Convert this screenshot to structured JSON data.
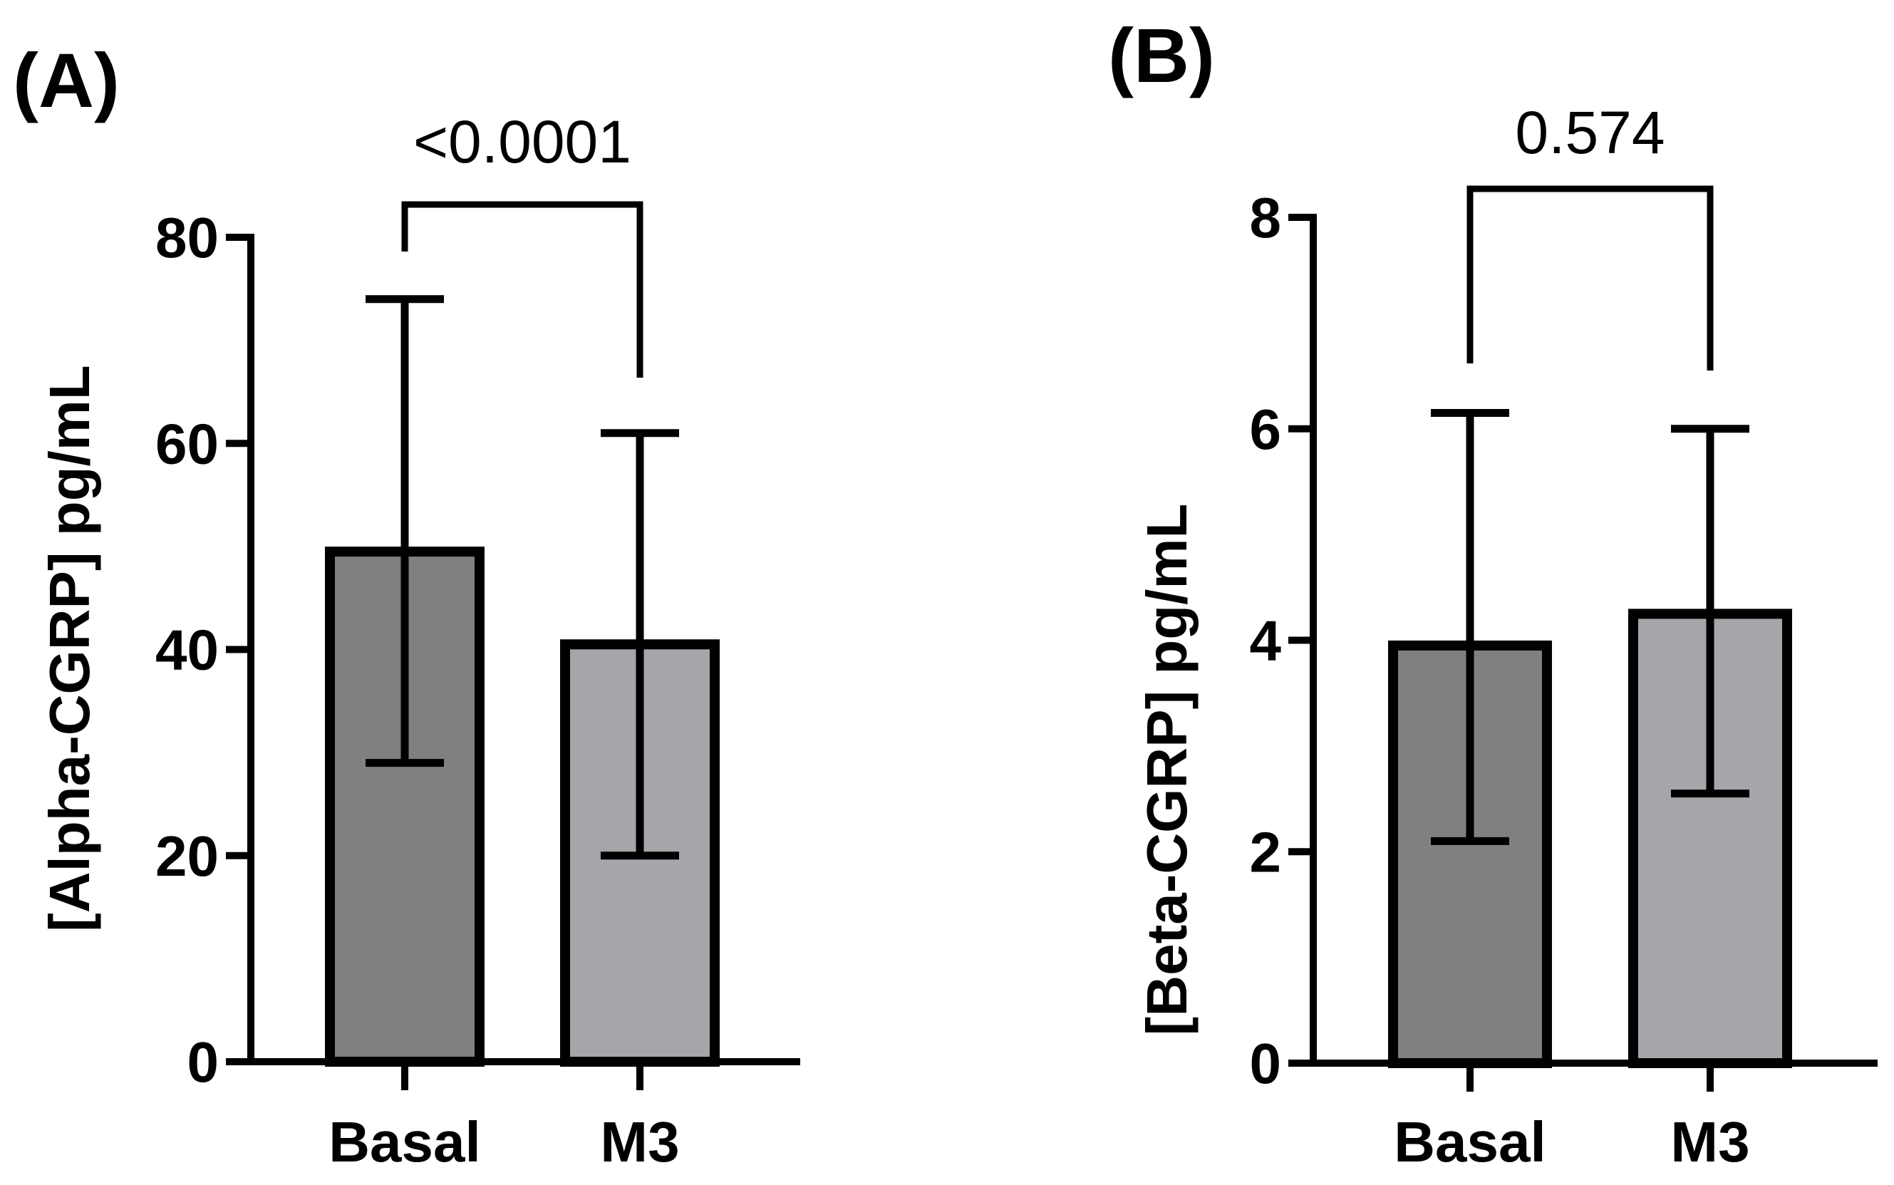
{
  "chart_data": [
    {
      "type": "bar",
      "panel_label": "(A)",
      "categories": [
        "Basal",
        "M3"
      ],
      "values": [
        49.5,
        40.5
      ],
      "error_upper": [
        74,
        61
      ],
      "error_lower": [
        29,
        20
      ],
      "bar_colors": [
        "#808080",
        "#a5a5aa"
      ],
      "ylabel": "[Alpha-CGRP] pg/mL",
      "ylim": [
        0,
        80
      ],
      "yticks": [
        0,
        20,
        40,
        60,
        80
      ],
      "ytick_labels": [
        "0",
        "20",
        "40",
        "60",
        "80"
      ],
      "significance": {
        "pair": [
          "Basal",
          "M3"
        ],
        "label": "<0.0001"
      }
    },
    {
      "type": "bar",
      "panel_label": "(B)",
      "categories": [
        "Basal",
        "M3"
      ],
      "values": [
        3.95,
        4.25
      ],
      "error_upper": [
        6.15,
        6.0
      ],
      "error_lower": [
        2.1,
        2.55
      ],
      "bar_colors": [
        "#808080",
        "#a5a5aa"
      ],
      "ylabel": "[Beta-CGRP] pg/mL",
      "ylim": [
        0,
        8
      ],
      "yticks": [
        0,
        2,
        4,
        6,
        8
      ],
      "ytick_labels": [
        "0",
        "2",
        "4",
        "6",
        "8"
      ],
      "significance": {
        "pair": [
          "Basal",
          "M3"
        ],
        "label": "0.574"
      }
    }
  ]
}
